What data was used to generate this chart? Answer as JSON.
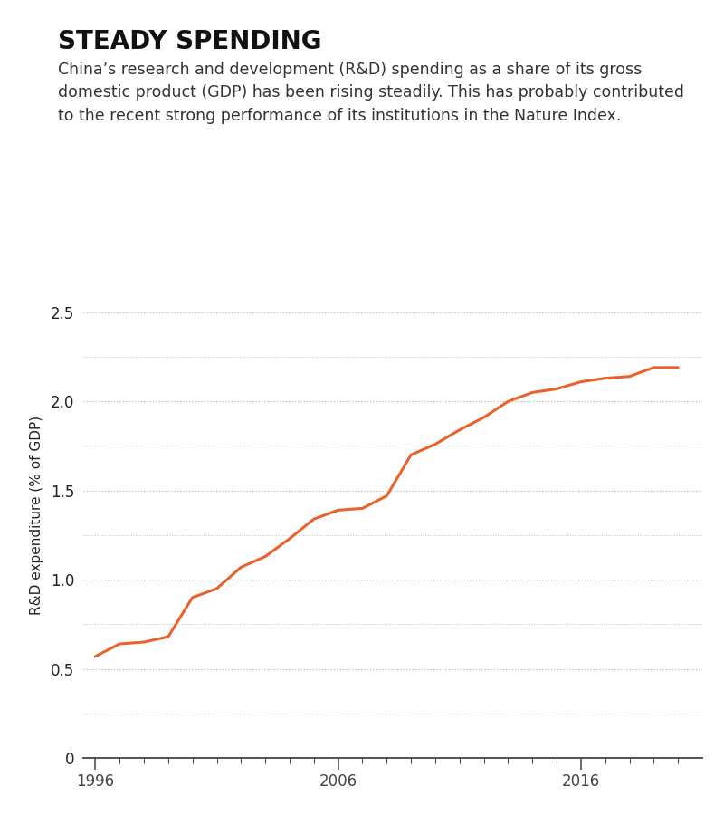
{
  "title": "STEADY SPENDING",
  "subtitle": "China’s research and development (R&D) spending as a share of its gross\ndomestic product (GDP) has been rising steadily. This has probably contributed\nto the recent strong performance of its institutions in the Nature Index.",
  "ylabel": "R&D expenditure (% of GDP)",
  "line_color": "#E8632A",
  "background_color": "#ffffff",
  "years": [
    1996,
    1997,
    1998,
    1999,
    2000,
    2001,
    2002,
    2003,
    2004,
    2005,
    2006,
    2007,
    2008,
    2009,
    2010,
    2011,
    2012,
    2013,
    2014,
    2015,
    2016,
    2017,
    2018,
    2019,
    2020
  ],
  "values": [
    0.57,
    0.64,
    0.65,
    0.68,
    0.9,
    0.95,
    1.07,
    1.13,
    1.23,
    1.34,
    1.39,
    1.4,
    1.47,
    1.7,
    1.76,
    1.84,
    1.91,
    2.0,
    2.05,
    2.07,
    2.11,
    2.13,
    2.14,
    2.19,
    2.19
  ],
  "xlim": [
    1995.5,
    2021.0
  ],
  "ylim": [
    0,
    2.72
  ],
  "yticks": [
    0,
    0.5,
    1.0,
    1.5,
    2.0,
    2.5
  ],
  "ytick_labels": [
    "0",
    "0.5",
    "1.0",
    "1.5",
    "2.0",
    "2.5"
  ],
  "minor_yticks": [
    0.25,
    0.75,
    1.25,
    1.75,
    2.25
  ],
  "xticks": [
    1996,
    2006,
    2016
  ],
  "grid_color": "#aaaaaa",
  "text_color": "#222222",
  "title_fontsize": 20,
  "subtitle_fontsize": 12.5,
  "axis_label_fontsize": 11,
  "tick_fontsize": 12
}
